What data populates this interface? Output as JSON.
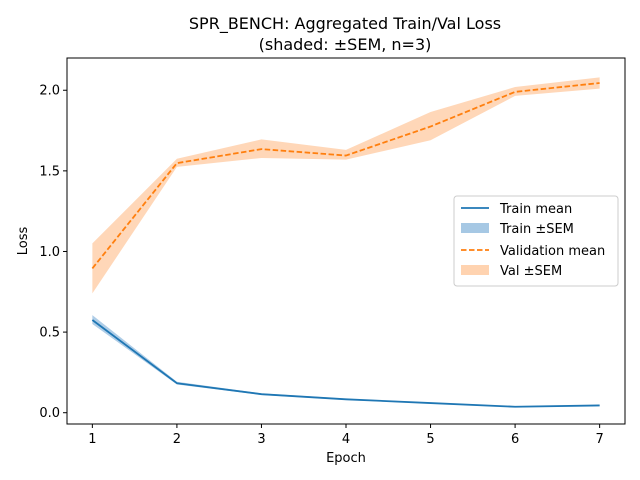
{
  "chart_data": {
    "type": "line",
    "title": "SPR_BENCH: Aggregated Train/Val Loss",
    "subtitle": "(shaded: ±SEM, n=3)",
    "xlabel": "Epoch",
    "ylabel": "Loss",
    "x": [
      1,
      2,
      3,
      4,
      5,
      6,
      7
    ],
    "xlim": [
      0.7,
      7.3
    ],
    "ylim": [
      -0.07,
      2.2
    ],
    "xticks": [
      "1",
      "2",
      "3",
      "4",
      "5",
      "6",
      "7"
    ],
    "yticks": [
      "0.0",
      "0.5",
      "1.0",
      "1.5",
      "2.0"
    ],
    "grid": false,
    "legend_position": "center-right",
    "series": [
      {
        "name": "Train mean",
        "band_name": "Train ±SEM",
        "color": "#1f77b4",
        "band_color": "#a6c8e4",
        "style": "solid",
        "mean": [
          0.575,
          0.183,
          0.115,
          0.083,
          0.06,
          0.037,
          0.045
        ],
        "lower": [
          0.55,
          0.175,
          0.11,
          0.079,
          0.057,
          0.034,
          0.042
        ],
        "upper": [
          0.605,
          0.192,
          0.12,
          0.087,
          0.063,
          0.04,
          0.048
        ]
      },
      {
        "name": "Validation mean",
        "band_name": "Val ±SEM",
        "color": "#ff7f0e",
        "band_color": "#ffd3b0",
        "style": "dashed",
        "mean": [
          0.895,
          1.548,
          1.635,
          1.595,
          1.775,
          1.99,
          2.045
        ],
        "lower": [
          0.74,
          1.525,
          1.58,
          1.57,
          1.69,
          1.965,
          2.01
        ],
        "upper": [
          1.05,
          1.575,
          1.695,
          1.63,
          1.865,
          2.02,
          2.08
        ]
      }
    ]
  }
}
